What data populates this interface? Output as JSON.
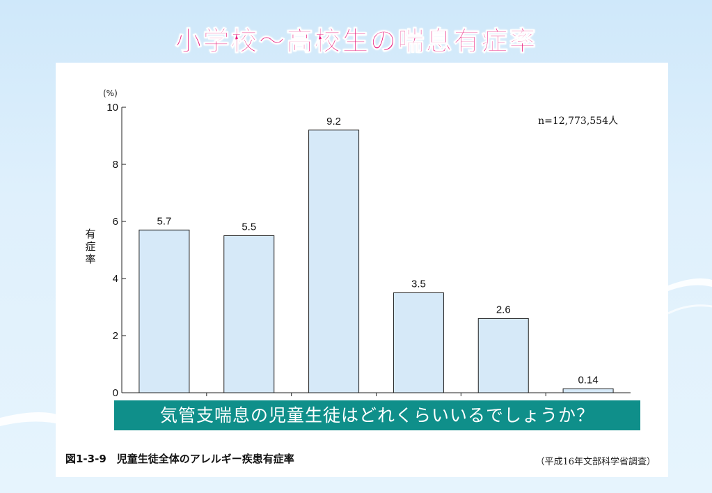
{
  "slide": {
    "title": "小学校～高校生の喘息有症率",
    "title_color": "#e8177a",
    "background_color": "#d6edfb"
  },
  "banner": {
    "question": "気管支喘息の児童生徒はどれくらいいるでしょうか？",
    "color": "#0f8f8a"
  },
  "figure": {
    "caption": "図1‐3‐9　児童生徒全体のアレルギー疾患有症率",
    "source": "（平成16年文部科学省調査）"
  },
  "chart_data": {
    "type": "bar",
    "categories": [
      "",
      "",
      "",
      "",
      "",
      ""
    ],
    "values": [
      5.7,
      5.5,
      9.2,
      3.5,
      2.6,
      0.14
    ],
    "value_labels": [
      "5.7",
      "5.5",
      "9.2",
      "3.5",
      "2.6",
      "0.14"
    ],
    "ylabel": "有症率",
    "yunit": "(%)",
    "ylim": [
      0,
      10
    ],
    "yticks": [
      0,
      2,
      4,
      6,
      8,
      10
    ],
    "annotation": "n=12,773,554人",
    "bar_color": "#d6e9f8",
    "grid": false
  }
}
